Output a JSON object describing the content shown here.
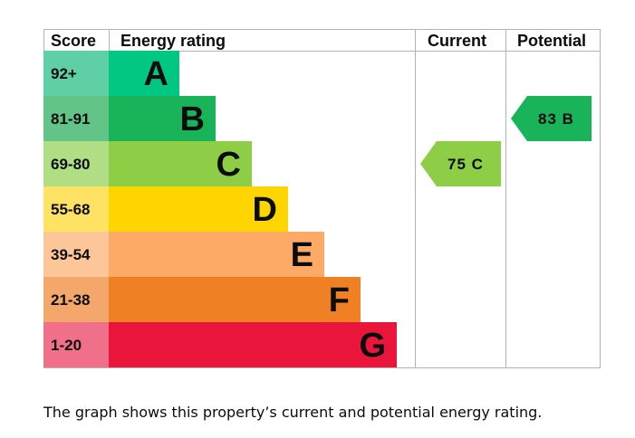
{
  "chart_data": {
    "type": "bar",
    "headers": {
      "score": "Score",
      "rating": "Energy rating",
      "current": "Current",
      "potential": "Potential"
    },
    "bands": [
      {
        "letter": "A",
        "range": "92+",
        "color": "#00c781",
        "score_bg": "#5fd0a5"
      },
      {
        "letter": "B",
        "range": "81-91",
        "color": "#19b459",
        "score_bg": "#63c488"
      },
      {
        "letter": "C",
        "range": "69-80",
        "color": "#8dce46",
        "score_bg": "#b0de85"
      },
      {
        "letter": "D",
        "range": "55-68",
        "color": "#ffd500",
        "score_bg": "#fde264"
      },
      {
        "letter": "E",
        "range": "39-54",
        "color": "#fcaa65",
        "score_bg": "#fdc698"
      },
      {
        "letter": "F",
        "range": "21-38",
        "color": "#ef8023",
        "score_bg": "#f4a76a"
      },
      {
        "letter": "G",
        "range": "1-20",
        "color": "#e9153b",
        "score_bg": "#f07089"
      }
    ],
    "current": {
      "value": 75,
      "band": "C",
      "label": "75 C",
      "color": "#8dce46"
    },
    "potential": {
      "value": 83,
      "band": "B",
      "label": "83 B",
      "color": "#19b459"
    }
  },
  "caption": "The graph shows this property’s current and potential energy rating."
}
